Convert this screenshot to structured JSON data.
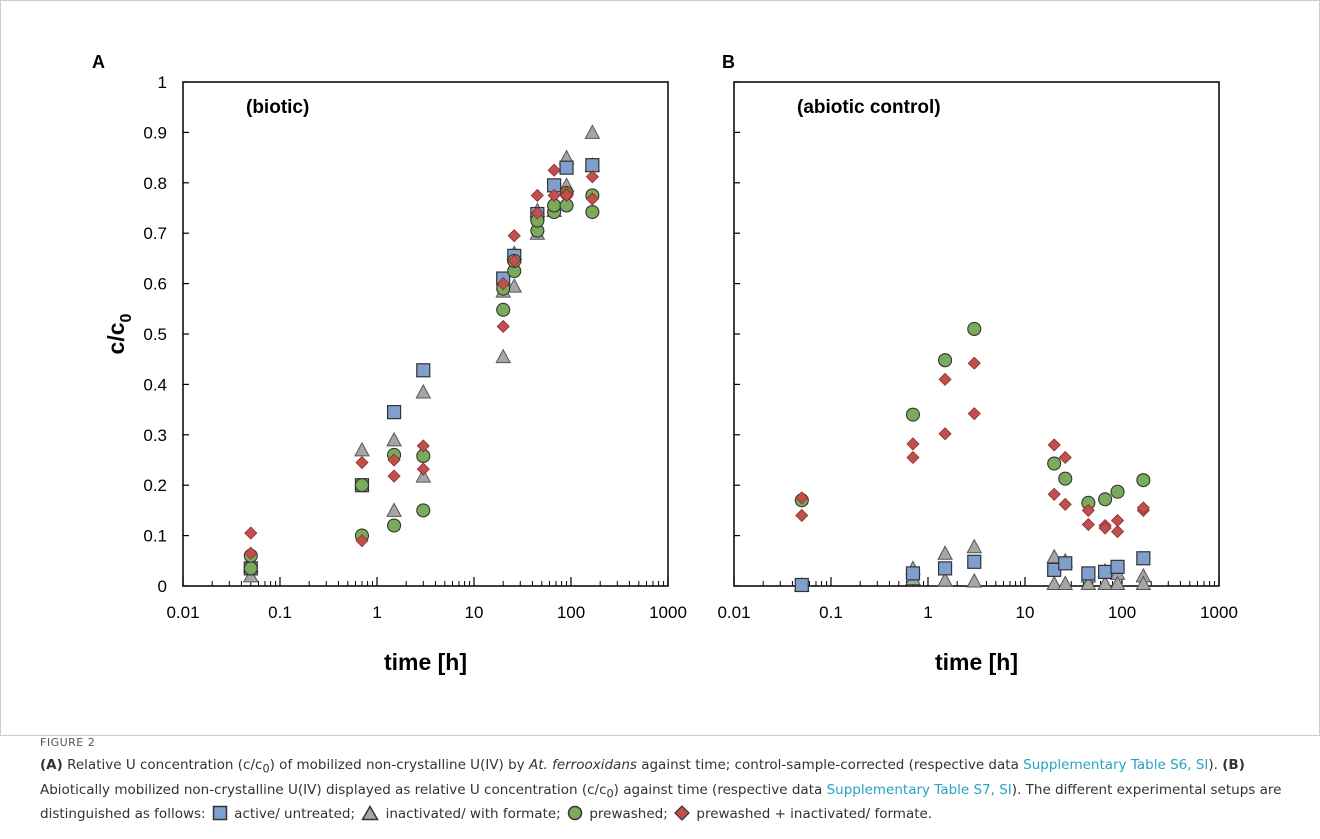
{
  "figure": {
    "label": "FIGURE 2",
    "caption": {
      "a_label": "(A)",
      "a_text_1": " Relative U concentration (c/c",
      "a_text_2": ") of mobilized non-crystalline U(IV) by ",
      "a_species": "At. ferrooxidans",
      "a_text_3": " against time; control-sample-corrected (respective data ",
      "a_link": "Supplementary Table S6, SI",
      "a_text_4": "). ",
      "b_label": "(B)",
      "b_text_1": " Abiotically mobilized non-crystalline U(IV) displayed as relative U concentration (c/c",
      "b_text_2": ") against time (respective data ",
      "b_link": "Supplementary Table S7, SI",
      "b_text_3": "). The different experimental setups are distinguished as follows: ",
      "leg_1": " active/ untreated; ",
      "leg_2": " inactivated/ with formate; ",
      "leg_3": " prewashed; ",
      "leg_4": " prewashed + inactivated/ formate.",
      "subscript": "0"
    }
  },
  "colors": {
    "square": "#7f9fcf",
    "triangle": "#a6a6a6",
    "circle": "#7aab5a",
    "diamond": "#c0504d",
    "stroke": "#333333"
  },
  "chart_data": [
    {
      "panel": "A",
      "type": "scatter",
      "annotation": "(biotic)",
      "xlabel": "time [h]",
      "ylabel": "c/c",
      "ylabel_sub": "0",
      "xscale": "log",
      "xlim": [
        0.01,
        1000
      ],
      "ylim": [
        0,
        1
      ],
      "xticks": [
        "0.01",
        "0.1",
        "1",
        "10",
        "100",
        "1000"
      ],
      "yticks": [
        "0",
        "0.1",
        "0.2",
        "0.3",
        "0.4",
        "0.5",
        "0.6",
        "0.7",
        "0.8",
        "0.9",
        "1"
      ],
      "series": [
        {
          "marker": "square",
          "points": [
            [
              0.05,
              0.035
            ],
            [
              0.7,
              0.2
            ],
            [
              1.5,
              0.345
            ],
            [
              3,
              0.428
            ],
            [
              20,
              0.61
            ],
            [
              26,
              0.655
            ],
            [
              45,
              0.738
            ],
            [
              67,
              0.795
            ],
            [
              90,
              0.83
            ],
            [
              166,
              0.835
            ]
          ]
        },
        {
          "marker": "triangle",
          "points": [
            [
              0.05,
              0.02
            ],
            [
              0.05,
              0.04
            ],
            [
              0.7,
              0.27
            ],
            [
              1.5,
              0.29
            ],
            [
              1.5,
              0.15
            ],
            [
              3,
              0.385
            ],
            [
              3,
              0.218
            ],
            [
              20,
              0.455
            ],
            [
              20,
              0.585
            ],
            [
              26,
              0.595
            ],
            [
              26,
              0.66
            ],
            [
              45,
              0.7
            ],
            [
              45,
              0.745
            ],
            [
              67,
              0.745
            ],
            [
              90,
              0.85
            ],
            [
              90,
              0.795
            ],
            [
              166,
              0.9
            ],
            [
              166,
              0.835
            ]
          ]
        },
        {
          "marker": "circle",
          "points": [
            [
              0.05,
              0.035
            ],
            [
              0.05,
              0.06
            ],
            [
              0.7,
              0.2
            ],
            [
              0.7,
              0.1
            ],
            [
              1.5,
              0.26
            ],
            [
              1.5,
              0.12
            ],
            [
              3,
              0.258
            ],
            [
              3,
              0.15
            ],
            [
              20,
              0.548
            ],
            [
              20,
              0.59
            ],
            [
              26,
              0.625
            ],
            [
              26,
              0.645
            ],
            [
              45,
              0.705
            ],
            [
              45,
              0.725
            ],
            [
              67,
              0.742
            ],
            [
              67,
              0.755
            ],
            [
              90,
              0.755
            ],
            [
              90,
              0.78
            ],
            [
              166,
              0.775
            ],
            [
              166,
              0.742
            ]
          ]
        },
        {
          "marker": "diamond",
          "points": [
            [
              0.05,
              0.105
            ],
            [
              0.05,
              0.065
            ],
            [
              0.7,
              0.245
            ],
            [
              0.7,
              0.09
            ],
            [
              1.5,
              0.25
            ],
            [
              1.5,
              0.218
            ],
            [
              3,
              0.278
            ],
            [
              3,
              0.232
            ],
            [
              20,
              0.515
            ],
            [
              20,
              0.6
            ],
            [
              26,
              0.695
            ],
            [
              26,
              0.645
            ],
            [
              45,
              0.775
            ],
            [
              45,
              0.74
            ],
            [
              67,
              0.825
            ],
            [
              67,
              0.775
            ],
            [
              90,
              0.78
            ],
            [
              90,
              0.775
            ],
            [
              166,
              0.812
            ],
            [
              166,
              0.768
            ]
          ]
        }
      ]
    },
    {
      "panel": "B",
      "type": "scatter",
      "annotation": "(abiotic control)",
      "xlabel": "time [h]",
      "xscale": "log",
      "xlim": [
        0.01,
        1000
      ],
      "ylim": [
        0,
        1
      ],
      "xticks": [
        "0.01",
        "0.1",
        "1",
        "10",
        "100",
        "1000"
      ],
      "series": [
        {
          "marker": "square",
          "points": [
            [
              0.05,
              0.002
            ],
            [
              0.7,
              0.025
            ],
            [
              1.5,
              0.035
            ],
            [
              3,
              0.048
            ],
            [
              20,
              0.032
            ],
            [
              26,
              0.045
            ],
            [
              45,
              0.025
            ],
            [
              67,
              0.028
            ],
            [
              90,
              0.038
            ],
            [
              166,
              0.055
            ]
          ]
        },
        {
          "marker": "triangle",
          "points": [
            [
              0.05,
              0.002
            ],
            [
              0.7,
              0.035
            ],
            [
              0.7,
              0.015
            ],
            [
              1.5,
              0.065
            ],
            [
              1.5,
              0.012
            ],
            [
              3,
              0.078
            ],
            [
              3,
              0.01
            ],
            [
              20,
              0.058
            ],
            [
              20,
              0.005
            ],
            [
              26,
              0.005
            ],
            [
              26,
              0.05
            ],
            [
              45,
              0.02
            ],
            [
              45,
              0.005
            ],
            [
              67,
              0.03
            ],
            [
              67,
              0.005
            ],
            [
              90,
              0.025
            ],
            [
              90,
              0.005
            ],
            [
              166,
              0.02
            ],
            [
              166,
              0.005
            ]
          ]
        },
        {
          "marker": "circle",
          "points": [
            [
              0.05,
              0.17
            ],
            [
              0.7,
              0.34
            ],
            [
              1.5,
              0.448
            ],
            [
              3,
              0.51
            ],
            [
              20,
              0.243
            ],
            [
              26,
              0.213
            ],
            [
              45,
              0.165
            ],
            [
              67,
              0.172
            ],
            [
              90,
              0.187
            ],
            [
              166,
              0.21
            ]
          ]
        },
        {
          "marker": "diamond",
          "points": [
            [
              0.05,
              0.175
            ],
            [
              0.05,
              0.14
            ],
            [
              0.7,
              0.282
            ],
            [
              0.7,
              0.255
            ],
            [
              1.5,
              0.41
            ],
            [
              1.5,
              0.302
            ],
            [
              3,
              0.442
            ],
            [
              3,
              0.342
            ],
            [
              20,
              0.28
            ],
            [
              20,
              0.182
            ],
            [
              26,
              0.255
            ],
            [
              26,
              0.162
            ],
            [
              45,
              0.15
            ],
            [
              45,
              0.122
            ],
            [
              67,
              0.12
            ],
            [
              67,
              0.115
            ],
            [
              90,
              0.13
            ],
            [
              90,
              0.108
            ],
            [
              166,
              0.15
            ],
            [
              166,
              0.155
            ]
          ]
        }
      ]
    }
  ]
}
